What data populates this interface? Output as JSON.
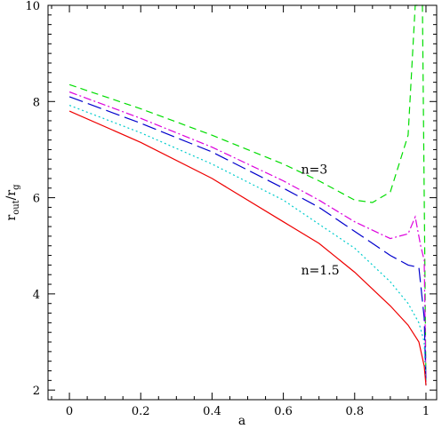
{
  "chart_data": {
    "type": "line",
    "xlabel": "a",
    "ylabel_main": "r",
    "ylabel_sub1": "out",
    "ylabel_sep": "/r",
    "ylabel_sub2": "g",
    "xlim": [
      -0.06,
      1.03
    ],
    "ylim": [
      1.8,
      10
    ],
    "xticks": [
      0,
      0.2,
      0.4,
      0.6,
      0.8,
      1
    ],
    "xtick_labels": [
      "0",
      "0.2",
      "0.4",
      "0.6",
      "0.8",
      "1"
    ],
    "yticks": [
      2,
      4,
      6,
      8,
      10
    ],
    "ytick_labels": [
      "2",
      "4",
      "6",
      "8",
      "10"
    ],
    "grid": false,
    "annotations": [
      {
        "text": "n=3",
        "x": 0.65,
        "y": 6.5
      },
      {
        "text": "n=1.5",
        "x": 0.65,
        "y": 4.4
      }
    ],
    "series": [
      {
        "color": "#00dd00",
        "dash": "8,5",
        "x": [
          0,
          0.2,
          0.4,
          0.6,
          0.7,
          0.8,
          0.85,
          0.9,
          0.95,
          0.97,
          0.99,
          1.0
        ],
        "y": [
          8.35,
          7.85,
          7.3,
          6.7,
          6.35,
          5.95,
          5.9,
          6.12,
          7.3,
          10,
          10,
          2.1
        ]
      },
      {
        "color": "#dd00dd",
        "dash": "9,3,2,3",
        "x": [
          0,
          0.2,
          0.4,
          0.6,
          0.7,
          0.8,
          0.9,
          0.95,
          0.97,
          0.985,
          0.995,
          1.0
        ],
        "y": [
          8.2,
          7.65,
          7.05,
          6.35,
          5.95,
          5.5,
          5.15,
          5.25,
          5.6,
          5.0,
          4.7,
          2.1
        ]
      },
      {
        "color": "#0000cc",
        "dash": "16,6",
        "x": [
          0,
          0.2,
          0.4,
          0.6,
          0.7,
          0.8,
          0.9,
          0.95,
          0.98,
          0.995,
          1.0
        ],
        "y": [
          8.1,
          7.55,
          6.95,
          6.2,
          5.8,
          5.3,
          4.8,
          4.6,
          4.55,
          3.5,
          2.1
        ]
      },
      {
        "color": "#00cccc",
        "dash": "2,3",
        "x": [
          0,
          0.2,
          0.4,
          0.6,
          0.7,
          0.8,
          0.9,
          0.95,
          0.98,
          0.995,
          1.0
        ],
        "y": [
          7.92,
          7.35,
          6.7,
          5.95,
          5.45,
          4.95,
          4.25,
          3.8,
          3.4,
          3.0,
          2.1
        ]
      },
      {
        "color": "#ee0000",
        "dash": "",
        "x": [
          0,
          0.2,
          0.4,
          0.6,
          0.7,
          0.8,
          0.9,
          0.95,
          0.98,
          0.995,
          1.0
        ],
        "y": [
          7.8,
          7.15,
          6.4,
          5.5,
          5.05,
          4.45,
          3.75,
          3.35,
          3.0,
          2.5,
          2.1
        ]
      }
    ]
  }
}
